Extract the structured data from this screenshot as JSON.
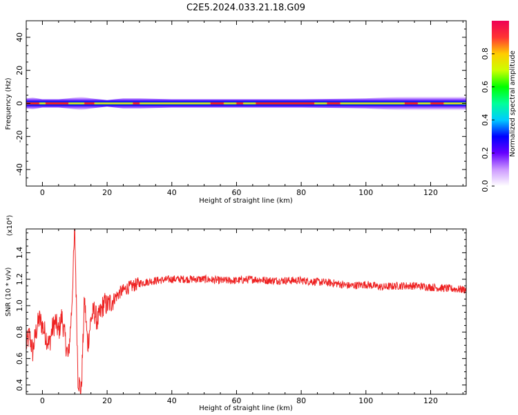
{
  "chart_data": [
    {
      "type": "heatmap",
      "title": "C2E5.2024.033.21.18.G09",
      "xlabel": "Height of straight line (km)",
      "ylabel": "Frequency (Hz)",
      "xlim": [
        -5,
        131
      ],
      "ylim": [
        -50,
        50
      ],
      "x_ticks": [
        0,
        20,
        40,
        60,
        80,
        100,
        120
      ],
      "y_ticks": [
        40,
        20,
        0,
        -20,
        -40
      ],
      "colorbar": {
        "label": "Normalized spectral amplitude",
        "range": [
          0,
          1
        ],
        "ticks": [
          "0.0",
          "0.2",
          "0.4",
          "0.6",
          "0.8"
        ],
        "colors": [
          "#ffffff",
          "#cc99ff",
          "#6600ff",
          "#0000ff",
          "#00ccff",
          "#00ff99",
          "#00ff00",
          "#ccff00",
          "#ffcc00",
          "#ff3333",
          "#ee0055"
        ]
      },
      "band_center_hz": 0,
      "band_halfwidth_hz": [
        [
          -5,
          3
        ],
        [
          -3,
          3.5
        ],
        [
          0,
          2.5
        ],
        [
          5,
          2.5
        ],
        [
          8,
          3
        ],
        [
          10,
          3.5
        ],
        [
          12,
          4
        ],
        [
          15,
          3
        ],
        [
          20,
          2
        ],
        [
          25,
          3
        ],
        [
          30,
          3
        ],
        [
          40,
          2.5
        ],
        [
          60,
          2.5
        ],
        [
          80,
          2.5
        ],
        [
          100,
          3
        ],
        [
          105,
          3.5
        ],
        [
          110,
          4
        ],
        [
          120,
          4.5
        ],
        [
          131,
          4.5
        ]
      ]
    },
    {
      "type": "line",
      "xlabel": "Height of straight line (km)",
      "ylabel": "SNR (10 * v/v)",
      "yunit": "(x10⁴)",
      "xlim": [
        -5,
        131
      ],
      "ylim": [
        0.33,
        1.58
      ],
      "x_ticks": [
        0,
        20,
        40,
        60,
        80,
        100,
        120
      ],
      "y_ticks": [
        "1.4",
        "1.2",
        "1.0",
        "0.8",
        "0.6",
        "0.4"
      ],
      "series_color": "#ee2222",
      "points": [
        [
          -5,
          0.7
        ],
        [
          -4,
          0.78
        ],
        [
          -3,
          0.65
        ],
        [
          -2,
          0.8
        ],
        [
          -1,
          0.9
        ],
        [
          0,
          0.85
        ],
        [
          1,
          0.78
        ],
        [
          2,
          0.7
        ],
        [
          3,
          0.82
        ],
        [
          4,
          0.88
        ],
        [
          5,
          0.8
        ],
        [
          6,
          0.92
        ],
        [
          7,
          0.75
        ],
        [
          8,
          0.6
        ],
        [
          9,
          0.95
        ],
        [
          10,
          1.58
        ],
        [
          11,
          0.45
        ],
        [
          12,
          0.35
        ],
        [
          13,
          1.05
        ],
        [
          14,
          0.7
        ],
        [
          15,
          0.9
        ],
        [
          16,
          0.96
        ],
        [
          17,
          0.88
        ],
        [
          18,
          0.95
        ],
        [
          19,
          1.02
        ],
        [
          20,
          1.0
        ],
        [
          22,
          1.05
        ],
        [
          24,
          1.1
        ],
        [
          26,
          1.13
        ],
        [
          28,
          1.15
        ],
        [
          30,
          1.17
        ],
        [
          35,
          1.19
        ],
        [
          40,
          1.2
        ],
        [
          45,
          1.2
        ],
        [
          50,
          1.2
        ],
        [
          55,
          1.19
        ],
        [
          60,
          1.19
        ],
        [
          65,
          1.2
        ],
        [
          70,
          1.19
        ],
        [
          75,
          1.19
        ],
        [
          80,
          1.19
        ],
        [
          85,
          1.18
        ],
        [
          90,
          1.17
        ],
        [
          95,
          1.15
        ],
        [
          100,
          1.16
        ],
        [
          105,
          1.14
        ],
        [
          110,
          1.15
        ],
        [
          115,
          1.15
        ],
        [
          120,
          1.14
        ],
        [
          125,
          1.13
        ],
        [
          131,
          1.12
        ]
      ]
    }
  ]
}
